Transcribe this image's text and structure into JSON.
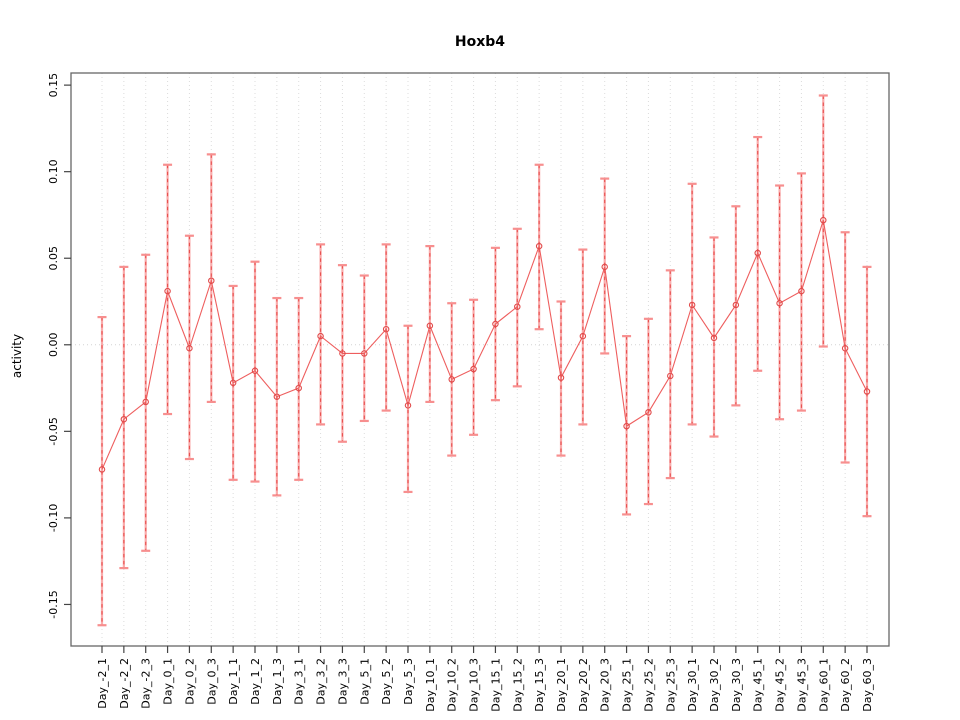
{
  "page": {
    "background": "#ffffff"
  },
  "chart_data": {
    "type": "line",
    "title": "Hoxb4",
    "xlabel": "",
    "ylabel": "activity",
    "legend": "none",
    "grid": "dotted vertical gridline at every category; dotted horizontal line at y=0",
    "marker": "open-circle",
    "error_bars": true,
    "ylim": [
      -0.174,
      0.157
    ],
    "yticks": [
      0.15,
      0.1,
      0.05,
      0.0,
      -0.05,
      -0.1,
      -0.15
    ],
    "ytick_labels": [
      "0.15",
      "0.10",
      "0.05",
      "0.00",
      "-0.05",
      "-0.10",
      "-0.15"
    ],
    "categories": [
      "Day_-2_1",
      "Day_-2_2",
      "Day_-2_3",
      "Day_0_1",
      "Day_0_2",
      "Day_0_3",
      "Day_1_1",
      "Day_1_2",
      "Day_1_3",
      "Day_3_1",
      "Day_3_2",
      "Day_3_3",
      "Day_5_1",
      "Day_5_2",
      "Day_5_3",
      "Day_10_1",
      "Day_10_2",
      "Day_10_3",
      "Day_15_1",
      "Day_15_2",
      "Day_15_3",
      "Day_20_1",
      "Day_20_2",
      "Day_20_3",
      "Day_25_1",
      "Day_25_2",
      "Day_25_3",
      "Day_30_1",
      "Day_30_2",
      "Day_30_3",
      "Day_45_1",
      "Day_45_2",
      "Day_45_3",
      "Day_60_1",
      "Day_60_2",
      "Day_60_3"
    ],
    "series": [
      {
        "name": "activity",
        "values": [
          -0.072,
          -0.043,
          -0.033,
          0.031,
          -0.002,
          0.037,
          -0.022,
          -0.015,
          -0.03,
          -0.025,
          0.005,
          -0.005,
          -0.005,
          0.009,
          -0.035,
          0.011,
          -0.02,
          -0.014,
          0.012,
          0.022,
          0.057,
          -0.019,
          0.005,
          0.045,
          -0.047,
          -0.039,
          -0.018,
          0.023,
          0.004,
          0.023,
          0.053,
          0.024,
          0.031,
          0.072,
          -0.002,
          -0.027
        ],
        "error_high": [
          0.016,
          0.045,
          0.052,
          0.104,
          0.063,
          0.11,
          0.034,
          0.048,
          0.027,
          0.027,
          0.058,
          0.046,
          0.04,
          0.058,
          0.011,
          0.057,
          0.024,
          0.026,
          0.056,
          0.067,
          0.104,
          0.025,
          0.055,
          0.096,
          0.005,
          0.015,
          0.043,
          0.093,
          0.062,
          0.08,
          0.12,
          0.092,
          0.099,
          0.144,
          0.065,
          0.045
        ],
        "error_low": [
          -0.162,
          -0.129,
          -0.119,
          -0.04,
          -0.066,
          -0.033,
          -0.078,
          -0.079,
          -0.087,
          -0.078,
          -0.046,
          -0.056,
          -0.044,
          -0.038,
          -0.085,
          -0.033,
          -0.064,
          -0.052,
          -0.032,
          -0.024,
          0.009,
          -0.064,
          -0.046,
          -0.005,
          -0.098,
          -0.092,
          -0.077,
          -0.046,
          -0.053,
          -0.035,
          -0.015,
          -0.043,
          -0.038,
          -0.001,
          -0.068,
          -0.099
        ]
      }
    ],
    "colors": {
      "line": "#ee5e5e",
      "marker_stroke": "#e14b4b",
      "errorbar_base": "#f9abab",
      "errorbar_dash": "#e8504f",
      "errorbar_cap": "#f78f8f",
      "gridline": "#dcdcdc",
      "zero_line": "#d4d4d4",
      "axis_box": "#666666",
      "tick": "#444444",
      "text": "#000000"
    }
  }
}
